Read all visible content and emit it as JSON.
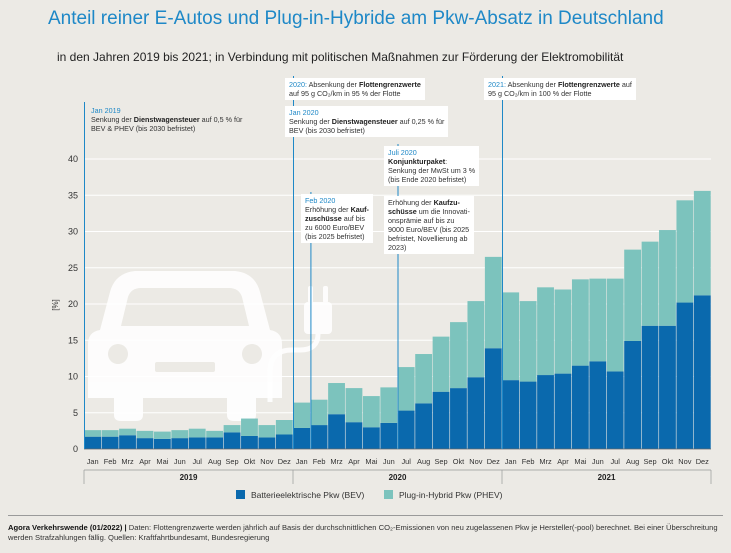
{
  "title": "Anteil reiner E-Autos und Plug-in-Hybride am Pkw-Absatz in Deutschland",
  "subtitle": "in den Jahren 2019 bis 2021; in Verbindung mit politischen Maßnahmen zur Förderung der Elektromobilität",
  "colors": {
    "bev": "#0a69ad",
    "phev": "#7cc3bd",
    "accent": "#1e88c7",
    "background": "#eceae5"
  },
  "annotations": {
    "a1": {
      "date": "Jan 2019",
      "pre": "Senkung der ",
      "bold": "Dienstwagensteuer",
      "post": " auf 0,5 % für",
      "l2": "BEV & PHEV (bis 2030 befristet)"
    },
    "a2": {
      "date": "2020:",
      "pre": " Absenkung der ",
      "bold": "Flottengrenzwerte",
      "l2": "auf 95 g CO₂/km  in 95 % der Flotte"
    },
    "a3": {
      "date": "Jan 2020",
      "pre": "Senkung der ",
      "bold": "Dienstwagensteuer",
      "post": " auf 0,25 % für",
      "l2": "BEV (bis 2030 befristet)"
    },
    "a4": {
      "date": "2021:",
      "pre": " Absenkung der ",
      "bold": "Flottengrenzwerte",
      "post": " auf",
      "l2": "95 g CO₂/km in 100 % der Flotte"
    },
    "a5": {
      "date": "Feb 2020",
      "l1": "Erhöhung der ",
      "b1": "Kauf-",
      "b2": "zuschüsse",
      "l2": " auf bis",
      "l3": "zu 6000 Euro/BEV",
      "l4": "(bis 2025 befristet)"
    },
    "a6": {
      "date": "Juli 2020",
      "bold": "Konjunkturpaket",
      "colon": ":",
      "l2": "Senkung der MwSt um 3 %",
      "l3": "(bis Ende 2020 befristet)"
    },
    "a7": {
      "pre": "Erhöhung der ",
      "b1": "Kaufzu-",
      "b2": "schüsse",
      "l2": " um die Innovati-",
      "l3": "onsprämie auf bis zu",
      "l4": "9000 Euro/BEV (bis 2025",
      "l5": "befristet, Novellierung ab",
      "l6": "2023)"
    }
  },
  "legend": {
    "bev": "Batterieelektrische Pkw (BEV)",
    "phev": "Plug-in-Hybrid Pkw (PHEV)"
  },
  "footer": {
    "bold": "Agora Verkehrswende (01/2022) |",
    "text": " Daten: Flottengrenzwerte werden jährlich auf Basis der durchschnittlichen CO₂-Emissionen von neu zugelassenen Pkw je Hersteller(-pool) berechnet. Bei einer Überschreitung werden Strafzahlungen fällig. Quellen: Kraftfahrtbundesamt, Bundesregierung"
  },
  "chart_data": {
    "type": "bar",
    "stacked": true,
    "ylabel": "[%]",
    "ylim": [
      0,
      40
    ],
    "yticks": [
      0,
      5,
      10,
      15,
      20,
      25,
      30,
      35,
      40
    ],
    "grid": true,
    "categories": [
      "Jan",
      "Feb",
      "Mrz",
      "Apr",
      "Mai",
      "Jun",
      "Jul",
      "Aug",
      "Sep",
      "Okt",
      "Nov",
      "Dez",
      "Jan",
      "Feb",
      "Mrz",
      "Apr",
      "Mai",
      "Jun",
      "Jul",
      "Aug",
      "Sep",
      "Okt",
      "Nov",
      "Dez",
      "Jan",
      "Feb",
      "Mrz",
      "Apr",
      "Mai",
      "Jun",
      "Jul",
      "Aug",
      "Sep",
      "Okt",
      "Nov",
      "Dez"
    ],
    "years": [
      "2019",
      "2020",
      "2021"
    ],
    "series": [
      {
        "name": "Batterieelektrische Pkw (BEV)",
        "values": [
          1.7,
          1.7,
          1.9,
          1.5,
          1.4,
          1.5,
          1.6,
          1.6,
          2.3,
          1.8,
          1.6,
          2.0,
          2.9,
          3.3,
          4.8,
          3.7,
          3.0,
          3.6,
          5.3,
          6.3,
          7.9,
          8.4,
          9.9,
          13.9,
          9.5,
          9.3,
          10.2,
          10.4,
          11.5,
          12.1,
          10.7,
          14.9,
          17.0,
          17.0,
          20.2,
          21.2
        ]
      },
      {
        "name": "Plug-in-Hybrid Pkw (PHEV)",
        "values": [
          0.9,
          0.9,
          0.9,
          1.0,
          1.0,
          1.1,
          1.2,
          0.9,
          1.0,
          2.4,
          1.7,
          2.0,
          3.5,
          3.5,
          4.3,
          4.7,
          4.3,
          4.9,
          6.0,
          6.8,
          7.6,
          9.1,
          10.5,
          12.6,
          12.1,
          11.1,
          12.1,
          11.6,
          11.9,
          11.4,
          12.8,
          12.6,
          11.6,
          13.2,
          14.1,
          14.4
        ]
      }
    ]
  }
}
